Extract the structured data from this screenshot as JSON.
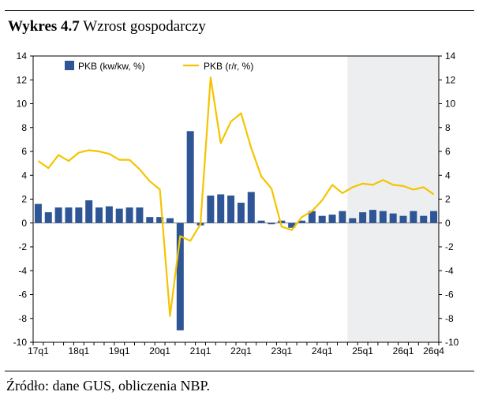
{
  "title": {
    "bold": "Wykres 4.7",
    "text": "Wzrost gospodarczy"
  },
  "source": "Źródło: dane GUS, obliczenia NBP.",
  "colors": {
    "bar": "#2E5596",
    "line": "#F5C400",
    "shade": "#EDEEF0",
    "zero": "#808080"
  },
  "chart_data": {
    "type": "bar+line",
    "title": "Wzrost gospodarczy",
    "ylim": [
      -10,
      14
    ],
    "y_ticks": [
      "14",
      "12",
      "10",
      "8",
      "6",
      "4",
      "2",
      "0",
      "-2",
      "-4",
      "-6",
      "-8",
      "-10"
    ],
    "x_tick_labels": [
      "17q1",
      "18q1",
      "19q1",
      "20q1",
      "21q1",
      "22q1",
      "23q1",
      "24q1",
      "25q1",
      "26q1",
      "26q4"
    ],
    "projection_shading_from": "24q4",
    "legend_position": "top",
    "categories": [
      "17q1",
      "17q2",
      "17q3",
      "17q4",
      "18q1",
      "18q2",
      "18q3",
      "18q4",
      "19q1",
      "19q2",
      "19q3",
      "19q4",
      "20q1",
      "20q2",
      "20q3",
      "20q4",
      "21q1",
      "21q2",
      "21q3",
      "21q4",
      "22q1",
      "22q2",
      "22q3",
      "22q4",
      "23q1",
      "23q2",
      "23q3",
      "23q4",
      "24q1",
      "24q2",
      "24q3",
      "24q4",
      "25q1",
      "25q2",
      "25q3",
      "25q4",
      "26q1",
      "26q2",
      "26q3",
      "26q4"
    ],
    "series": [
      {
        "name": "PKB (kw/kw, %)",
        "type": "bar",
        "values": [
          1.6,
          0.9,
          1.3,
          1.3,
          1.3,
          1.9,
          1.3,
          1.4,
          1.2,
          1.3,
          1.3,
          0.5,
          0.5,
          0.4,
          -9.0,
          7.7,
          -0.2,
          2.3,
          2.4,
          2.3,
          1.7,
          2.6,
          0.2,
          -0.1,
          0.2,
          -0.4,
          0.2,
          1.0,
          0.6,
          0.7,
          1.0,
          0.4,
          0.9,
          1.1,
          1.0,
          0.8,
          0.6,
          1.0,
          0.6,
          1.0
        ]
      },
      {
        "name": "PKB (r/r, %)",
        "type": "line",
        "values": [
          5.2,
          4.6,
          5.7,
          5.2,
          5.9,
          6.1,
          6.0,
          5.8,
          5.3,
          5.3,
          4.5,
          3.5,
          2.8,
          -7.8,
          -1.1,
          -1.5,
          -0.1,
          12.2,
          6.7,
          8.5,
          9.2,
          6.3,
          3.9,
          2.9,
          -0.3,
          -0.6,
          0.5,
          1.0,
          1.9,
          3.2,
          2.5,
          3.0,
          3.3,
          3.2,
          3.6,
          3.2,
          3.1,
          2.8,
          3.0,
          2.4
        ]
      }
    ]
  }
}
